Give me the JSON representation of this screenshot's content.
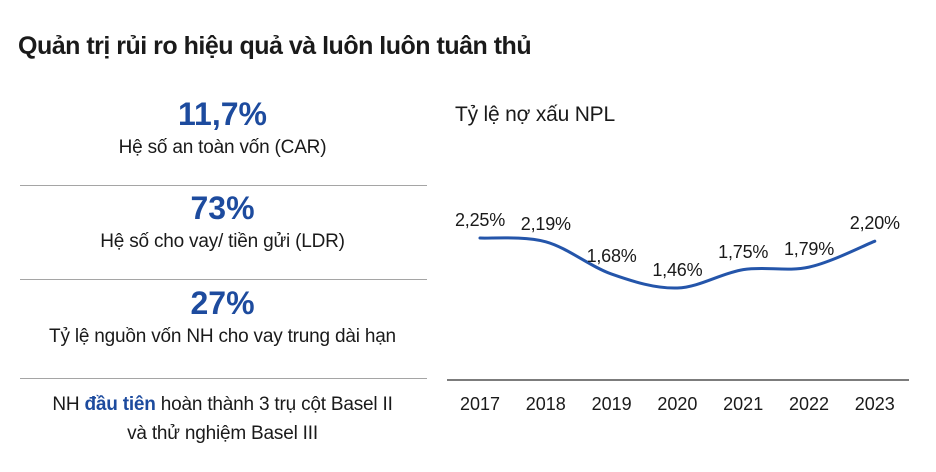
{
  "page": {
    "title": "Quản trị rủi ro hiệu quả và luôn luôn tuân thủ"
  },
  "stats": [
    {
      "value": "11,7%",
      "label": "Hệ số an toàn vốn (CAR)"
    },
    {
      "value": "73%",
      "label": "Hệ số cho vay/ tiền gửi (LDR)"
    },
    {
      "value": "27%",
      "label": "Tỷ lệ nguồn vốn NH cho vay trung dài hạn"
    }
  ],
  "basel_note": {
    "prefix": "NH ",
    "highlight": "đầu tiên",
    "rest": " hoàn thành 3 trụ cột Basel II",
    "line2": "và thử nghiệm Basel III"
  },
  "chart_data": {
    "type": "line",
    "title": "Tỷ lệ nợ xấu NPL",
    "categories": [
      "2017",
      "2018",
      "2019",
      "2020",
      "2021",
      "2022",
      "2023"
    ],
    "values": [
      2.25,
      2.19,
      1.68,
      1.46,
      1.75,
      1.79,
      2.2
    ],
    "point_labels": [
      "2,25%",
      "2,19%",
      "1,68%",
      "1,46%",
      "1,75%",
      "1,79%",
      "2,20%"
    ],
    "xlabel": "",
    "ylabel": "",
    "ylim": [
      1.3,
      2.5
    ],
    "grid": false,
    "legend_position": "none",
    "line_color": "#2455aa"
  },
  "colors": {
    "accent_blue": "#1d4b9e",
    "text": "#1a1a1a",
    "divider": "#a5a5a5",
    "axis": "#7c7c7c"
  }
}
